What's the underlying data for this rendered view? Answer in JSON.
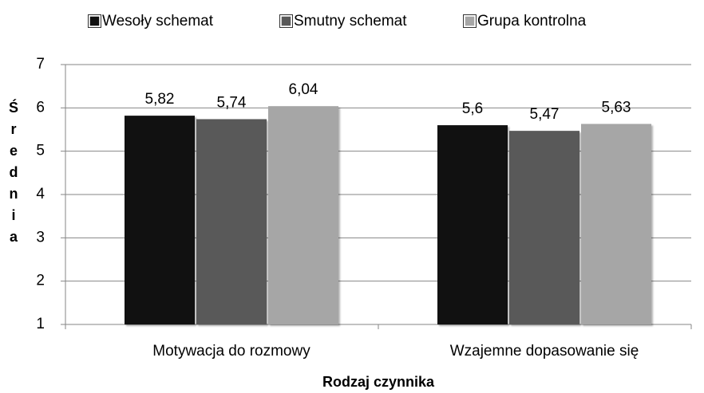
{
  "chart_data": {
    "type": "bar",
    "categories": [
      "Motywacja do rozmowy",
      "Wzajemne dopasowanie się"
    ],
    "series": [
      {
        "name": "Wesoły schemat",
        "color": "#111111",
        "values": [
          5.82,
          5.6
        ],
        "value_labels": [
          "5,82",
          "5,6"
        ]
      },
      {
        "name": "Smutny schemat",
        "color": "#595959",
        "values": [
          5.74,
          5.47
        ],
        "value_labels": [
          "5,74",
          "5,47"
        ]
      },
      {
        "name": "Grupa kontrolna",
        "color": "#a6a6a6",
        "values": [
          6.04,
          5.63
        ],
        "value_labels": [
          "6,04",
          "5,63"
        ]
      }
    ],
    "y_label": "Średnia",
    "x_label": "Rodzaj czynnika",
    "ylim": [
      1,
      7
    ],
    "yticks": [
      1,
      2,
      3,
      4,
      5,
      6,
      7
    ],
    "grid": true,
    "legend": "top"
  }
}
